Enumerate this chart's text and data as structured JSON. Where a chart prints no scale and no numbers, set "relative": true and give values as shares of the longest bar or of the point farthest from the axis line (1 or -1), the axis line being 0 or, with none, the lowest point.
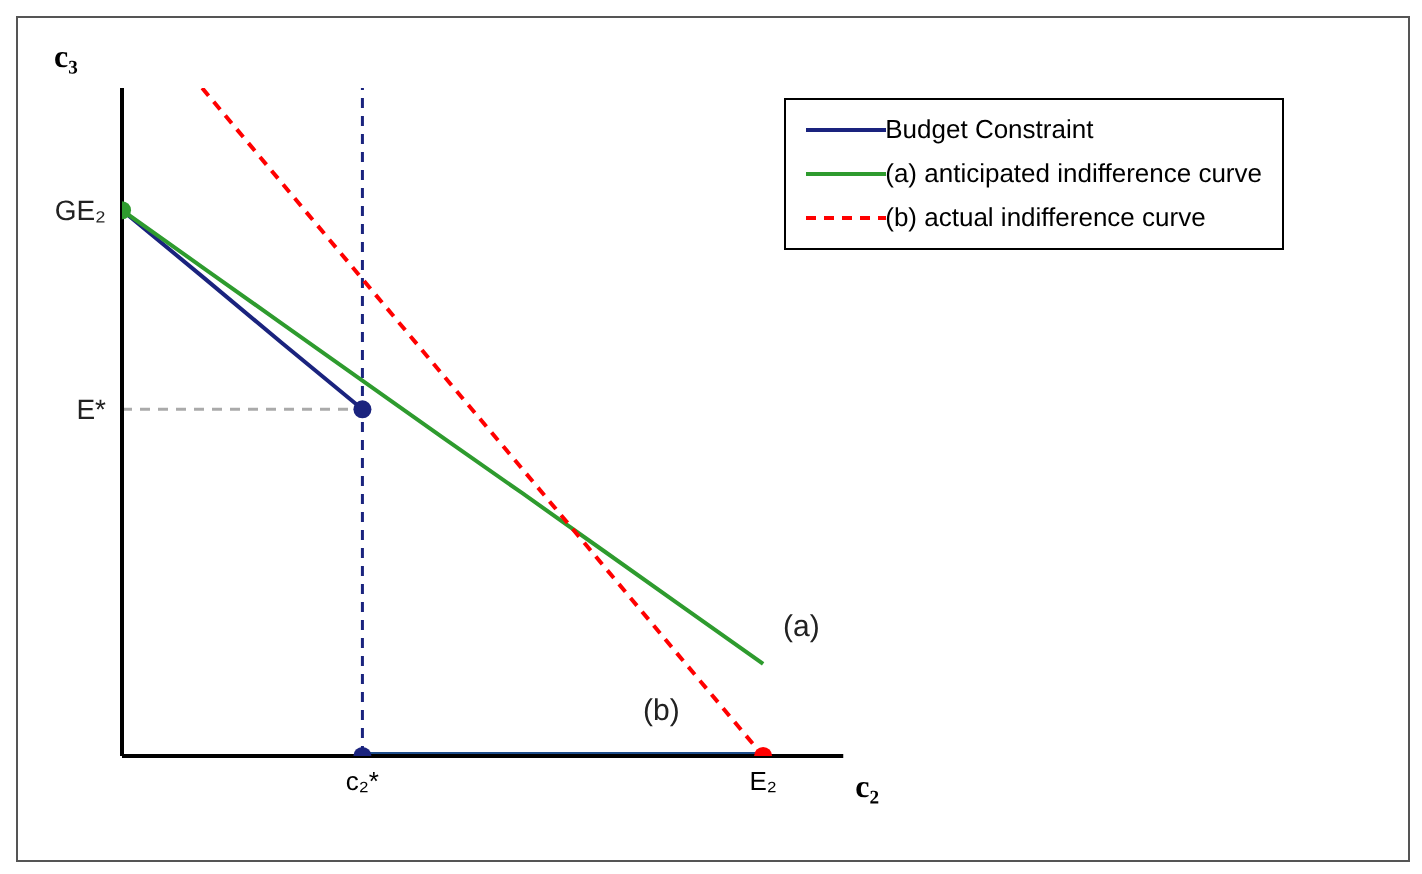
{
  "chart_data": {
    "type": "line",
    "relative": true,
    "xlabel": "c₂",
    "ylabel": "c₃",
    "categories": [
      null,
      null,
      null,
      "c₂*",
      null,
      null,
      null,
      null,
      "E₂",
      null
    ],
    "legend": "top right",
    "annotations": [
      "GE₂",
      "E*",
      {
        "text": "(a)",
        "x": "E₂",
        "y": 0.138
      },
      {
        "text": "(b)",
        "x": "E₂",
        "y": 0
      }
    ],
    "ref_lines": [
      {
        "axis": "x",
        "value": "c₂*",
        "color": "#1a237e",
        "line_style": "dashed"
      },
      {
        "axis": "y",
        "value": 0.519,
        "color": "#aaaaaa",
        "line_style": "dashed"
      }
    ],
    "series": [
      {
        "name": "Budget Constraint",
        "color": "#1a237e",
        "values": [
          0.817,
          0.718,
          0.618,
          0.519,
          null,
          null,
          null,
          null,
          null,
          null
        ]
      },
      {
        "color": "#1f4e8c",
        "values": [
          null,
          null,
          null,
          0,
          0,
          0,
          0,
          0,
          0,
          null
        ]
      },
      {
        "name": "(a) anticipated indifference curve",
        "color": "#2e9b2e",
        "values": [
          0.817,
          0.732,
          0.647,
          0.562,
          0.477,
          0.393,
          0.308,
          0.223,
          0.138,
          null
        ]
      },
      {
        "name": "(b) actual indifference curve",
        "color": "#ff0000",
        "line_style": "dashed",
        "values": [
          null,
          1,
          0.857,
          0.714,
          0.571,
          0.429,
          0.286,
          0.143,
          0,
          null
        ]
      },
      {
        "type": "scatter",
        "colors": [
          "#2e9b2e",
          null,
          null,
          "#1a237e",
          null,
          null,
          null,
          null,
          "#ff0000",
          null
        ],
        "values": [
          0.817,
          null,
          null,
          0.519,
          null,
          null,
          null,
          null,
          0,
          null
        ]
      },
      {
        "type": "scatter",
        "color": "#1a237e",
        "values": [
          null,
          null,
          null,
          0,
          null,
          null,
          null,
          null,
          null,
          null
        ]
      }
    ]
  }
}
